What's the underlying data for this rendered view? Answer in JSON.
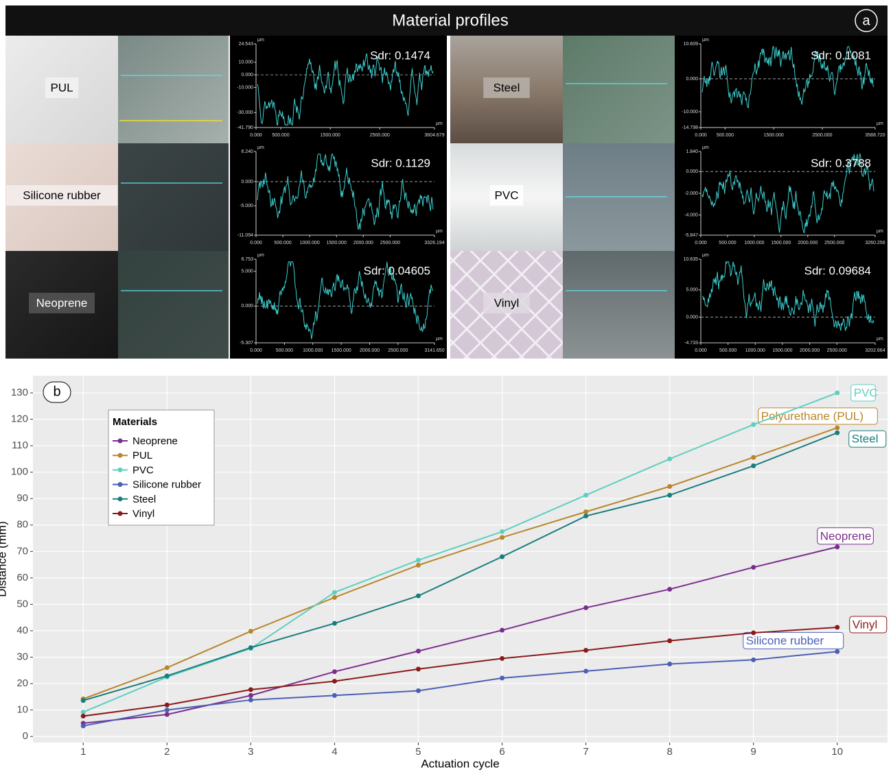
{
  "panel_a": {
    "title": "Material profiles",
    "label": "a",
    "unit": "µm",
    "materials": [
      {
        "name": "PUL",
        "sdr": "Sdr: 0.1474",
        "ylim": [
          -41.79,
          24.543
        ],
        "yticks": [
          {
            "value": 24.543,
            "label": "24.543"
          },
          {
            "value": 10,
            "label": "10.000"
          },
          {
            "value": 0,
            "label": "0.000"
          },
          {
            "value": -10,
            "label": "-10.000"
          },
          {
            "value": -30,
            "label": "-30.000"
          },
          {
            "value": -41.79,
            "label": "-41.790"
          }
        ],
        "xlim": [
          0,
          3604.679
        ],
        "xticks": [
          {
            "value": 0,
            "label": "0.000"
          },
          {
            "value": 500,
            "label": "500.000"
          },
          {
            "value": 1500,
            "label": "1500.000"
          },
          {
            "value": 2500,
            "label": "2500.000"
          },
          {
            "value": 3604.679,
            "label": "3604.679"
          }
        ]
      },
      {
        "name": "Steel",
        "sdr": "Sdr: 0.1081",
        "ylim": [
          -14.798,
          10.609
        ],
        "yticks": [
          {
            "value": 10.609,
            "label": "10.609"
          },
          {
            "value": 0,
            "label": "0.000"
          },
          {
            "value": -10,
            "label": "-10.000"
          },
          {
            "value": -14.798,
            "label": "-14.798"
          }
        ],
        "xlim": [
          0,
          3588.72
        ],
        "xticks": [
          {
            "value": 0,
            "label": "0.000"
          },
          {
            "value": 500,
            "label": "500.000"
          },
          {
            "value": 1500,
            "label": "1500.000"
          },
          {
            "value": 2500,
            "label": "2500.000"
          },
          {
            "value": 3588.72,
            "label": "3588.720"
          }
        ]
      },
      {
        "name": "Silicone rubber",
        "sdr": "Sdr: 0.1129",
        "ylim": [
          -11.094,
          6.24
        ],
        "yticks": [
          {
            "value": 6.24,
            "label": "6.240"
          },
          {
            "value": 0,
            "label": "0.000"
          },
          {
            "value": -5,
            "label": "-5.000"
          },
          {
            "value": -11.094,
            "label": "-11.094"
          }
        ],
        "xlim": [
          0,
          3326.194
        ],
        "xticks": [
          {
            "value": 0,
            "label": "0.000"
          },
          {
            "value": 500,
            "label": "500.000"
          },
          {
            "value": 1000,
            "label": "1000.000"
          },
          {
            "value": 1500,
            "label": "1500.000"
          },
          {
            "value": 2000,
            "label": "2000.000"
          },
          {
            "value": 2500,
            "label": "2500.000"
          },
          {
            "value": 3326.194,
            "label": "3326.194"
          }
        ]
      },
      {
        "name": "PVC",
        "sdr": "Sdr: 0.3788",
        "ylim": [
          -5.847,
          1.84
        ],
        "yticks": [
          {
            "value": 1.84,
            "label": "1.840"
          },
          {
            "value": 0,
            "label": "0.000"
          },
          {
            "value": -2,
            "label": "-2.000"
          },
          {
            "value": -4,
            "label": "-4.000"
          },
          {
            "value": -5.847,
            "label": "-5.847"
          }
        ],
        "xlim": [
          0,
          3260.256
        ],
        "xticks": [
          {
            "value": 0,
            "label": "0.000"
          },
          {
            "value": 500,
            "label": "500.000"
          },
          {
            "value": 1000,
            "label": "1000.000"
          },
          {
            "value": 1500,
            "label": "1500.000"
          },
          {
            "value": 2000,
            "label": "2000.000"
          },
          {
            "value": 2500,
            "label": "2500.000"
          },
          {
            "value": 3260.256,
            "label": "3260.256"
          }
        ]
      },
      {
        "name": "Neoprene",
        "sdr": "Sdr: 0.04605",
        "ylim": [
          -5.307,
          6.753
        ],
        "yticks": [
          {
            "value": 6.753,
            "label": "6.753"
          },
          {
            "value": 5,
            "label": "5.000"
          },
          {
            "value": 0,
            "label": "0.000"
          },
          {
            "value": -5.307,
            "label": "-5.307"
          }
        ],
        "xlim": [
          0,
          3141.65
        ],
        "xticks": [
          {
            "value": 0,
            "label": "0.000"
          },
          {
            "value": 500,
            "label": "500.000"
          },
          {
            "value": 1000,
            "label": "1000.000"
          },
          {
            "value": 1500,
            "label": "1500.000"
          },
          {
            "value": 2000,
            "label": "2000.000"
          },
          {
            "value": 2500,
            "label": "2500.000"
          },
          {
            "value": 3141.65,
            "label": "3141.650"
          }
        ]
      },
      {
        "name": "Vinyl",
        "sdr": "Sdr: 0.09684",
        "ylim": [
          -4.733,
          10.635
        ],
        "yticks": [
          {
            "value": 10.635,
            "label": "10.635"
          },
          {
            "value": 5,
            "label": "5.000"
          },
          {
            "value": 0,
            "label": "0.000"
          },
          {
            "value": -4.733,
            "label": "-4.733"
          }
        ],
        "xlim": [
          0,
          3202.664
        ],
        "xticks": [
          {
            "value": 0,
            "label": "0.000"
          },
          {
            "value": 500,
            "label": "500.000"
          },
          {
            "value": 1000,
            "label": "1000.000"
          },
          {
            "value": 1500,
            "label": "1500.000"
          },
          {
            "value": 2000,
            "label": "2000.000"
          },
          {
            "value": 2500,
            "label": "2500.000"
          },
          {
            "value": 3202.664,
            "label": "3202.664"
          }
        ]
      }
    ]
  },
  "chart_data": {
    "type": "line",
    "panel_label": "b",
    "x_label": "Actuation cycle",
    "y_label": "Distance (mm)",
    "legend_title": "Materials",
    "legend": "top-left",
    "grid": true,
    "x": [
      1,
      2,
      3,
      4,
      5,
      6,
      7,
      8,
      9,
      10
    ],
    "xlim": [
      0.4,
      10.6
    ],
    "xticks": [
      1,
      2,
      3,
      4,
      5,
      6,
      7,
      8,
      9,
      10
    ],
    "ylim": [
      -2.3,
      136.5
    ],
    "yticks": [
      0,
      10,
      20,
      30,
      40,
      50,
      60,
      70,
      80,
      90,
      100,
      110,
      120,
      130
    ],
    "series": [
      {
        "name": "Neoprene",
        "end_label": "Neoprene",
        "color": "#7b2d8e",
        "values": [
          5,
          8.3,
          15.5,
          24.5,
          32.3,
          40.2,
          48.7,
          55.7,
          64,
          71.7
        ]
      },
      {
        "name": "PUL",
        "end_label": "Polyurethane (PUL)",
        "color": "#b8862b",
        "values": [
          14.2,
          26,
          39.8,
          52.6,
          64.8,
          75.3,
          85,
          94.6,
          105.6,
          116.8
        ]
      },
      {
        "name": "PVC",
        "end_label": "PVC",
        "color": "#5dcfc0",
        "values": [
          9.2,
          22.5,
          33.3,
          54.5,
          66.7,
          77.5,
          91.3,
          105,
          118,
          130
        ]
      },
      {
        "name": "Silicone rubber",
        "end_label": "Silicone rubber",
        "color": "#4b5fb6",
        "values": [
          4,
          10,
          13.8,
          15.5,
          17.3,
          22.1,
          24.7,
          27.4,
          29,
          32.1
        ]
      },
      {
        "name": "Steel",
        "end_label": "Steel",
        "color": "#1a7d7d",
        "values": [
          13.6,
          22.9,
          33.6,
          42.8,
          53.2,
          68,
          83.4,
          91.3,
          102.4,
          114.9
        ]
      },
      {
        "name": "Vinyl",
        "end_label": "Vinyl",
        "color": "#8b1a1a",
        "values": [
          7.7,
          11.9,
          17.7,
          20.9,
          25.5,
          29.5,
          32.6,
          36.2,
          39.2,
          41.3
        ]
      }
    ]
  }
}
